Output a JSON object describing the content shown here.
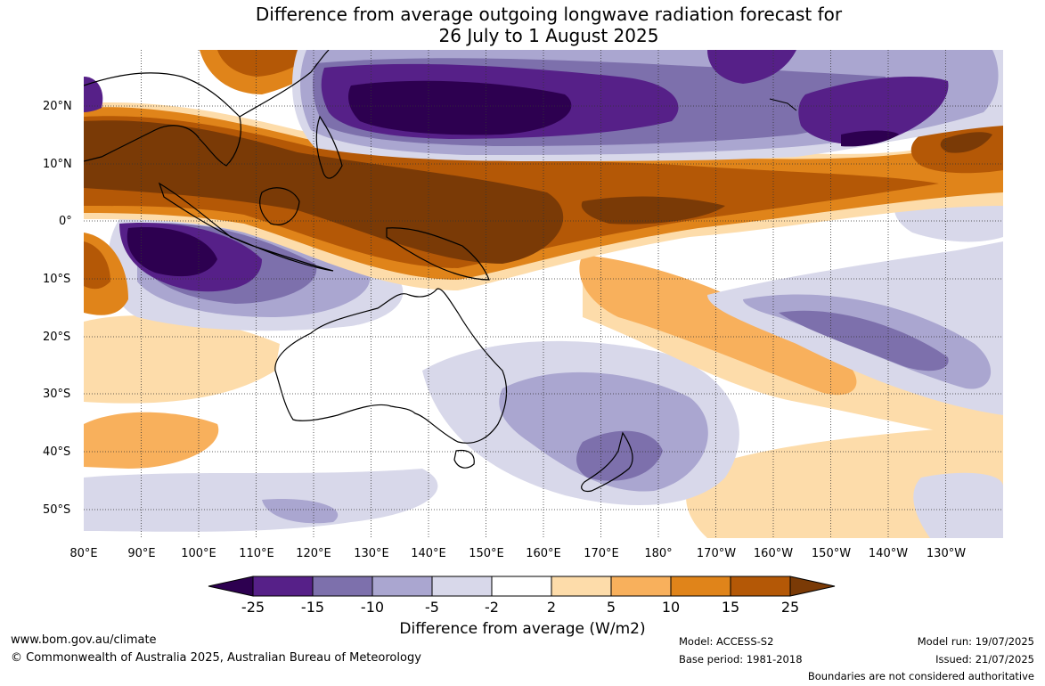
{
  "title": {
    "line1": "Difference from average outgoing longwave radiation forecast for",
    "line2": "26 July to 1 August 2025"
  },
  "map": {
    "lat_labels": [
      "20°N",
      "10°N",
      "0°",
      "10°S",
      "20°S",
      "30°S",
      "40°S",
      "50°S"
    ],
    "lon_labels": [
      "80°E",
      "90°E",
      "100°E",
      "110°E",
      "120°E",
      "130°E",
      "140°E",
      "150°E",
      "160°E",
      "170°E",
      "180°",
      "170°W",
      "160°W",
      "150°W",
      "140°W",
      "130°W"
    ],
    "colors": {
      "lt_-25": "#2d0050",
      "-25_-15": "#562088",
      "-15_-10": "#7d70ac",
      "-10_-5": "#aaa6d0",
      "-5_-2": "#d8d8ea",
      "-2_2": "#ffffff",
      "2_5": "#fddcaa",
      "5_10": "#f8b05c",
      "10_15": "#e0841a",
      "15_25": "#b45806",
      "gt_25": "#7a3a06"
    }
  },
  "colorbar": {
    "ticks": [
      "-25",
      "-15",
      "-10",
      "-5",
      "-2",
      "2",
      "5",
      "10",
      "15",
      "25"
    ],
    "title": "Difference from average (W/m2)"
  },
  "footer": {
    "website": "www.bom.gov.au/climate",
    "copyright": "© Commonwealth of Australia 2025, Australian Bureau of Meteorology",
    "model": "Model: ACCESS-S2",
    "base_period": "Base period: 1981-2018",
    "model_run": "Model run: 19/07/2025",
    "issued": "Issued: 21/07/2025",
    "disclaimer": "Boundaries are not considered authoritative"
  }
}
